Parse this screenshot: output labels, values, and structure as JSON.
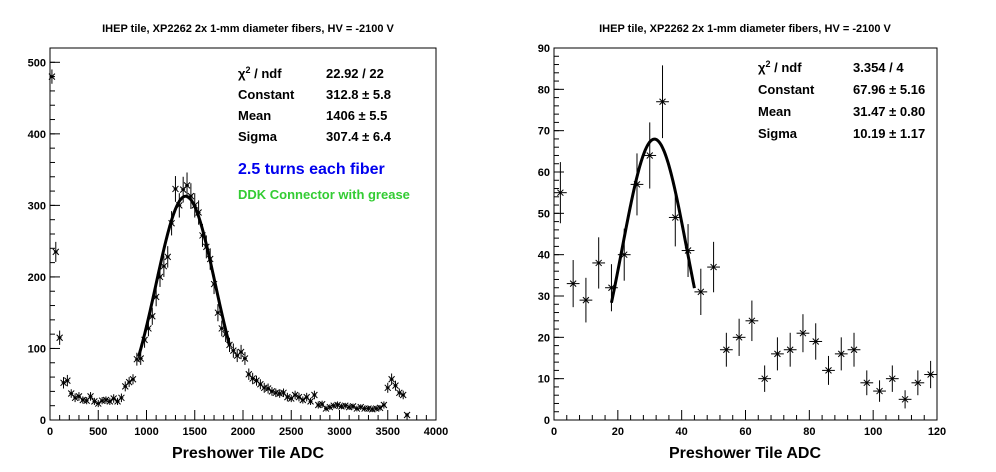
{
  "chart_data": [
    {
      "type": "scatter",
      "title": "IHEP tile, XP2262 2x 1-mm diameter fibers, HV = -2100 V",
      "xlabel": "Preshower Tile ADC",
      "ylabel": "",
      "xlim": [
        0,
        4000
      ],
      "ylim": [
        0,
        520
      ],
      "xticks": [
        0,
        500,
        1000,
        1500,
        2000,
        2500,
        3000,
        3500,
        4000
      ],
      "yticks": [
        0,
        100,
        200,
        300,
        400,
        500
      ],
      "grid": false,
      "xerr": 20,
      "series": [
        {
          "values": [
            [
              20,
              480,
              10
            ],
            [
              60,
              235,
              14
            ],
            [
              100,
              115,
              10
            ],
            [
              140,
              52,
              8
            ],
            [
              180,
              55,
              8
            ],
            [
              220,
              37,
              6
            ],
            [
              260,
              31,
              6
            ],
            [
              300,
              33,
              6
            ],
            [
              340,
              28,
              5
            ],
            [
              380,
              27,
              5
            ],
            [
              420,
              33,
              6
            ],
            [
              460,
              26,
              5
            ],
            [
              500,
              23,
              5
            ],
            [
              540,
              27,
              5
            ],
            [
              580,
              28,
              5
            ],
            [
              620,
              26,
              5
            ],
            [
              660,
              30,
              6
            ],
            [
              700,
              26,
              5
            ],
            [
              740,
              31,
              6
            ],
            [
              780,
              47,
              7
            ],
            [
              820,
              53,
              7
            ],
            [
              860,
              57,
              7
            ],
            [
              900,
              85,
              9
            ],
            [
              940,
              86,
              9
            ],
            [
              980,
              112,
              11
            ],
            [
              1020,
              128,
              11
            ],
            [
              1060,
              145,
              12
            ],
            [
              1100,
              172,
              13
            ],
            [
              1140,
              200,
              14
            ],
            [
              1180,
              215,
              15
            ],
            [
              1220,
              228,
              15
            ],
            [
              1260,
              275,
              17
            ],
            [
              1300,
              323,
              18
            ],
            [
              1340,
              300,
              17
            ],
            [
              1380,
              322,
              18
            ],
            [
              1420,
              328,
              18
            ],
            [
              1460,
              313,
              18
            ],
            [
              1500,
              300,
              17
            ],
            [
              1540,
              290,
              17
            ],
            [
              1580,
              258,
              16
            ],
            [
              1620,
              242,
              16
            ],
            [
              1660,
              225,
              15
            ],
            [
              1700,
              190,
              14
            ],
            [
              1740,
              150,
              12
            ],
            [
              1780,
              128,
              11
            ],
            [
              1820,
              120,
              11
            ],
            [
              1860,
              105,
              10
            ],
            [
              1900,
              97,
              10
            ],
            [
              1940,
              90,
              9
            ],
            [
              1980,
              95,
              10
            ],
            [
              2020,
              86,
              9
            ],
            [
              2060,
              64,
              8
            ],
            [
              2100,
              58,
              8
            ],
            [
              2140,
              55,
              7
            ],
            [
              2180,
              50,
              7
            ],
            [
              2220,
              45,
              7
            ],
            [
              2260,
              44,
              7
            ],
            [
              2300,
              40,
              6
            ],
            [
              2340,
              38,
              6
            ],
            [
              2380,
              37,
              6
            ],
            [
              2420,
              38,
              6
            ],
            [
              2460,
              32,
              6
            ],
            [
              2500,
              30,
              5
            ],
            [
              2540,
              35,
              6
            ],
            [
              2580,
              32,
              6
            ],
            [
              2620,
              28,
              5
            ],
            [
              2660,
              32,
              6
            ],
            [
              2700,
              26,
              5
            ],
            [
              2740,
              35,
              6
            ],
            [
              2780,
              21,
              5
            ],
            [
              2820,
              22,
              5
            ],
            [
              2860,
              16,
              4
            ],
            [
              2900,
              18,
              4
            ],
            [
              2940,
              20,
              4
            ],
            [
              2980,
              21,
              5
            ],
            [
              3020,
              19,
              4
            ],
            [
              3060,
              20,
              4
            ],
            [
              3100,
              18,
              4
            ],
            [
              3140,
              19,
              4
            ],
            [
              3180,
              16,
              4
            ],
            [
              3220,
              18,
              4
            ],
            [
              3260,
              16,
              4
            ],
            [
              3300,
              16,
              4
            ],
            [
              3340,
              15,
              4
            ],
            [
              3380,
              16,
              4
            ],
            [
              3420,
              17,
              4
            ],
            [
              3460,
              21,
              5
            ],
            [
              3500,
              45,
              7
            ],
            [
              3540,
              57,
              8
            ],
            [
              3580,
              48,
              7
            ],
            [
              3620,
              38,
              6
            ],
            [
              3660,
              35,
              6
            ],
            [
              3700,
              7,
              3
            ]
          ]
        }
      ],
      "fit": {
        "type": "gaussian",
        "constant": 312.8,
        "mean": 1406,
        "sigma": 307.4,
        "xmin": 920,
        "xmax": 1860
      },
      "stats": [
        {
          "label": "χ² / ndf",
          "value": "22.92 / 22"
        },
        {
          "label": "Constant",
          "value": "312.8 ± 5.8"
        },
        {
          "label": "Mean",
          "value": "1406 ± 5.5"
        },
        {
          "label": "Sigma",
          "value": "307.4 ± 6.4"
        }
      ],
      "annotations": [
        {
          "text": "2.5 turns each fiber",
          "color": "#0000ee"
        },
        {
          "text": "DDK Connector with grease",
          "color": "#33cc33"
        }
      ]
    },
    {
      "type": "scatter",
      "title": "IHEP tile, XP2262 2x 1-mm diameter fibers, HV = -2100 V",
      "xlabel": "Preshower Tile ADC",
      "ylabel": "",
      "xlim": [
        0,
        120
      ],
      "ylim": [
        0,
        90
      ],
      "xticks": [
        0,
        20,
        40,
        60,
        80,
        100,
        120
      ],
      "yticks": [
        0,
        10,
        20,
        30,
        40,
        50,
        60,
        70,
        80,
        90
      ],
      "grid": false,
      "xerr": 2,
      "series": [
        {
          "values": [
            [
              2,
              55,
              7.4
            ],
            [
              6,
              33,
              5.7
            ],
            [
              10,
              29,
              5.4
            ],
            [
              14,
              38,
              6.2
            ],
            [
              18,
              32,
              5.7
            ],
            [
              22,
              40,
              6.3
            ],
            [
              26,
              57,
              7.5
            ],
            [
              30,
              64,
              8.0
            ],
            [
              34,
              77,
              8.8
            ],
            [
              38,
              49,
              7.0
            ],
            [
              42,
              41,
              6.4
            ],
            [
              46,
              31,
              5.6
            ],
            [
              50,
              37,
              6.1
            ],
            [
              54,
              17,
              4.1
            ],
            [
              58,
              20,
              4.5
            ],
            [
              62,
              24,
              4.9
            ],
            [
              66,
              10,
              3.2
            ],
            [
              70,
              16,
              4.0
            ],
            [
              74,
              17,
              4.1
            ],
            [
              78,
              21,
              4.6
            ],
            [
              82,
              19,
              4.4
            ],
            [
              86,
              12,
              3.5
            ],
            [
              90,
              16,
              4.0
            ],
            [
              94,
              17,
              4.1
            ],
            [
              98,
              9,
              3.0
            ],
            [
              102,
              7,
              2.6
            ],
            [
              106,
              10,
              3.2
            ],
            [
              110,
              5,
              2.2
            ],
            [
              114,
              9,
              3.0
            ],
            [
              118,
              11,
              3.3
            ]
          ]
        }
      ],
      "fit": {
        "type": "gaussian",
        "constant": 67.96,
        "mean": 31.47,
        "sigma": 10.19,
        "xmin": 18,
        "xmax": 44
      },
      "stats": [
        {
          "label": "χ² / ndf",
          "value": "3.354 / 4"
        },
        {
          "label": "Constant",
          "value": "67.96 ± 5.16"
        },
        {
          "label": "Mean",
          "value": "31.47 ± 0.80"
        },
        {
          "label": "Sigma",
          "value": "10.19 ± 1.17"
        }
      ],
      "annotations": []
    }
  ]
}
